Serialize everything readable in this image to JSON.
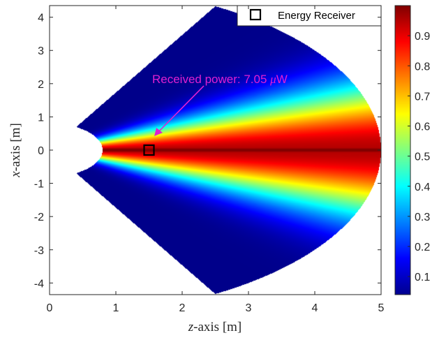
{
  "chart_data": {
    "type": "heatmap",
    "title": "",
    "xlabel_var": "z",
    "xlabel_rest": "-axis [m]",
    "ylabel_var": "x",
    "ylabel_rest": "-axis [m]",
    "xlim": [
      0,
      5
    ],
    "ylim": [
      -4.35,
      4.35
    ],
    "x_ticks": [
      "0",
      "1",
      "2",
      "3",
      "4",
      "5"
    ],
    "y_ticks": [
      "-4",
      "-3",
      "-2",
      "-1",
      "0",
      "1",
      "2",
      "3",
      "4"
    ],
    "colorbar": {
      "colormap": "jet",
      "range": [
        0.04,
        1.0
      ],
      "ticks": [
        "0.1",
        "0.2",
        "0.3",
        "0.4",
        "0.5",
        "0.6",
        "0.7",
        "0.8",
        "0.9"
      ]
    },
    "region": {
      "inner_radius_m": 0.8,
      "outer_radius_m": 5.0,
      "half_angle_deg": 60,
      "beam_center_x_m": 0.0
    },
    "receiver": {
      "z": 1.5,
      "x": 0.0
    },
    "legend": {
      "entries": [
        "Energy Receiver"
      ],
      "placement": "top-right"
    },
    "annotation": {
      "prefix": "Received power: 7.05 ",
      "unit_greek": "μ",
      "unit_rest": "W"
    }
  },
  "colors": {
    "annotation": "#e020d0",
    "receiver_marker": "#000000"
  }
}
